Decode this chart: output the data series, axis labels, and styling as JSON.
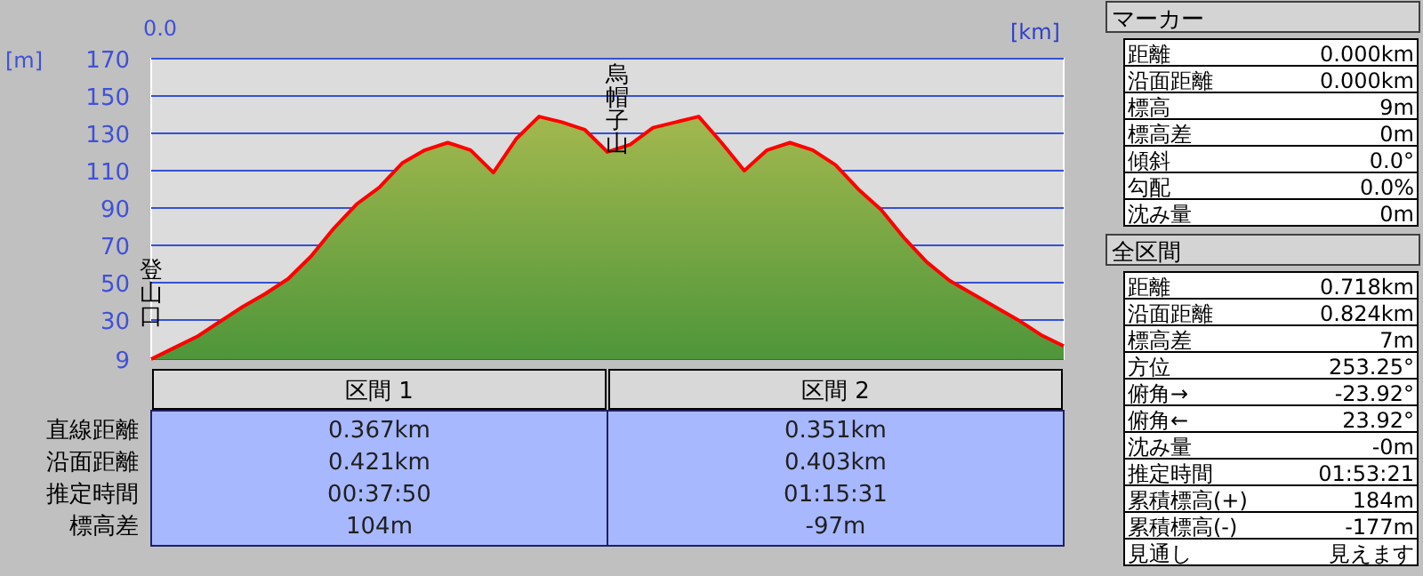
{
  "chart_data": [
    {
      "type": "area",
      "ylabel": "[m]",
      "xlabel": "[km]",
      "annotations": [
        "0.0",
        "登山口",
        "烏帽子山"
      ],
      "categories": [
        null,
        null,
        null,
        null,
        null,
        null,
        null,
        null,
        null,
        null,
        null,
        null,
        null,
        null,
        null,
        null,
        null,
        null,
        null,
        null,
        null,
        null,
        null,
        null,
        null,
        null,
        null,
        null,
        null,
        null,
        null,
        null,
        null,
        null,
        null,
        null,
        null,
        null,
        null,
        null,
        null
      ],
      "series": [
        {
          "color": "#ff0000",
          "values": [
            9,
            15,
            21,
            29,
            37,
            44,
            52,
            64,
            79,
            92,
            101,
            114,
            121,
            125,
            121,
            109,
            127,
            139,
            136,
            132,
            120,
            124,
            133,
            136,
            139,
            125,
            110,
            121,
            125,
            121,
            113,
            100,
            89,
            74,
            61,
            51,
            44,
            37,
            30,
            22,
            16
          ]
        }
      ],
      "ylim": [
        9,
        170
      ],
      "yticks": [
        9,
        30,
        50,
        70,
        90,
        110,
        130,
        150,
        170
      ],
      "grid": "y"
    },
    {
      "type": "other",
      "categories": [
        "区間 1",
        "区間 2"
      ],
      "y_categories": [
        "直線距離",
        "沿面距離",
        "推定時間",
        "標高差"
      ],
      "cell_labels": [
        [
          "0.367km",
          "0.351km"
        ],
        [
          "0.421km",
          "0.403km"
        ],
        [
          "00:37:50",
          "01:15:31"
        ],
        [
          "104m",
          "-97m"
        ]
      ]
    },
    {
      "type": "other",
      "title": "マーカー",
      "y_categories": [
        "距離",
        "沿面距離",
        "標高",
        "標高差",
        "傾斜",
        "勾配",
        "沈み量"
      ],
      "cell_labels": [
        [
          "0.000km"
        ],
        [
          "0.000km"
        ],
        [
          "9m"
        ],
        [
          "0m"
        ],
        [
          "0.0°"
        ],
        [
          "0.0%"
        ],
        [
          "0m"
        ]
      ]
    },
    {
      "type": "other",
      "title": "全区間",
      "y_categories": [
        "距離",
        "沿面距離",
        "標高差",
        "方位",
        "俯角→",
        "俯角←",
        "沈み量",
        "推定時間",
        "累積標高(+)",
        "累積標高(-)",
        "見通し"
      ],
      "cell_labels": [
        [
          "0.718km"
        ],
        [
          "0.824km"
        ],
        [
          "7m"
        ],
        [
          "253.25°"
        ],
        [
          "-23.92°"
        ],
        [
          "23.92°"
        ],
        [
          "-0m"
        ],
        [
          "01:53:21"
        ],
        [
          "184m"
        ],
        [
          "-177m"
        ],
        [
          "見えます"
        ]
      ]
    }
  ]
}
